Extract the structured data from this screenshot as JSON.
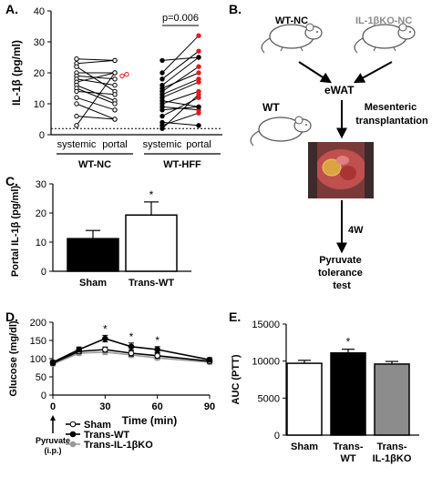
{
  "panels": {
    "a": "A.",
    "b": "B.",
    "c": "C.",
    "d": "D.",
    "e": "E."
  },
  "chart_data": [
    {
      "id": "A",
      "type": "scatter",
      "ylabel": "IL-1β (pg/ml)",
      "ylim": [
        0,
        40
      ],
      "yticks": [
        "0",
        "10",
        "20",
        "30",
        "40"
      ],
      "tick_labels": [
        "systemic",
        "portal",
        "systemic",
        "portal"
      ],
      "group_labels": [
        "WT-NC",
        "WT-HFF"
      ],
      "annotation": "p=0.006",
      "threshold_line": 2,
      "series": [
        {
          "name": "WT-NC",
          "pairs": [
            [
              24.5,
              24
            ],
            [
              23,
              24
            ],
            [
              22,
              14
            ],
            [
              20,
              20
            ],
            [
              19,
              18
            ],
            [
              18,
              16
            ],
            [
              17,
              20
            ],
            [
              16,
              11
            ],
            [
              15,
              10
            ],
            [
              14,
              13
            ],
            [
              12,
              8
            ],
            [
              10,
              5
            ],
            [
              6,
              5
            ],
            [
              3,
              20
            ]
          ],
          "red_portal_values": [
            19,
            19.5,
            20
          ]
        },
        {
          "name": "WT-HFF",
          "pairs": [
            [
              24,
              25
            ],
            [
              20,
              32
            ],
            [
              18,
              27
            ],
            [
              16,
              25
            ],
            [
              15,
              20
            ],
            [
              14,
              22
            ],
            [
              13,
              18
            ],
            [
              12,
              17
            ],
            [
              11,
              9
            ],
            [
              10,
              14
            ],
            [
              9,
              8
            ],
            [
              8,
              9
            ],
            [
              6,
              12
            ],
            [
              4,
              3
            ],
            [
              3,
              7
            ],
            [
              2,
              13
            ]
          ],
          "red_portal_values": [
            32,
            27,
            25,
            22,
            20,
            18,
            17,
            14,
            13,
            12,
            9,
            8,
            7
          ]
        }
      ]
    },
    {
      "id": "C",
      "type": "bar",
      "ylabel": "Portal IL-1β (pg/ml)",
      "ylim": [
        0,
        30
      ],
      "yticks": [
        "0",
        "10",
        "20",
        "30"
      ],
      "categories": [
        "Sham",
        "Trans-WT"
      ],
      "values": [
        11.2,
        19.3
      ],
      "errors": [
        2.8,
        4.5
      ],
      "colors": [
        "#000000",
        "#ffffff"
      ],
      "annotation": "*"
    },
    {
      "id": "D",
      "type": "line",
      "xlabel": "Time (min)",
      "ylabel": "Glucose (mg/dl)",
      "xlim": [
        0,
        90
      ],
      "ylim": [
        0,
        200
      ],
      "xticks": [
        "0",
        "30",
        "60",
        "90"
      ],
      "yticks": [
        "0",
        "50",
        "100",
        "150",
        "200"
      ],
      "x": [
        0,
        15,
        30,
        45,
        60,
        90
      ],
      "arrow_label": "Pyruvate\n(i.p.)",
      "series": [
        {
          "name": "Sham",
          "values": [
            88,
            120,
            125,
            115,
            108,
            93
          ],
          "errors": [
            5,
            6,
            7,
            8,
            7,
            5
          ],
          "marker": "open",
          "color": "#000000"
        },
        {
          "name": "Trans-WT",
          "values": [
            90,
            125,
            155,
            133,
            125,
            97
          ],
          "errors": [
            5,
            7,
            9,
            10,
            8,
            5
          ],
          "marker": "filled",
          "color": "#000000"
        },
        {
          "name": "Trans-IL-1βKO",
          "values": [
            85,
            115,
            118,
            110,
            102,
            90
          ],
          "errors": [
            5,
            6,
            7,
            7,
            6,
            5
          ],
          "marker": "gray",
          "color": "#999999"
        }
      ],
      "significance": [
        {
          "x": 30,
          "label": "*"
        },
        {
          "x": 45,
          "label": "*"
        },
        {
          "x": 60,
          "label": "*"
        }
      ]
    },
    {
      "id": "E",
      "type": "bar",
      "ylabel": "AUC (PTT)",
      "ylim": [
        0,
        15000
      ],
      "yticks": [
        "0",
        "5000",
        "10000",
        "15000"
      ],
      "categories": [
        "Sham",
        "Trans-\nWT",
        "Trans-\nIL-1βKO"
      ],
      "values": [
        9700,
        11100,
        9600
      ],
      "errors": [
        400,
        500,
        350
      ],
      "colors": [
        "#ffffff",
        "#000000",
        "#8c8c8c"
      ],
      "annotation": "*"
    }
  ],
  "diagram": {
    "mouse1": "WT-NC",
    "mouse2": "IL-1βKO-NC",
    "source": "eWAT",
    "recipient": "WT",
    "procedure": "Mesenteric\ntransplantation",
    "duration": "4W",
    "outcome": "Pyruvate\ntolerance\ntest"
  }
}
